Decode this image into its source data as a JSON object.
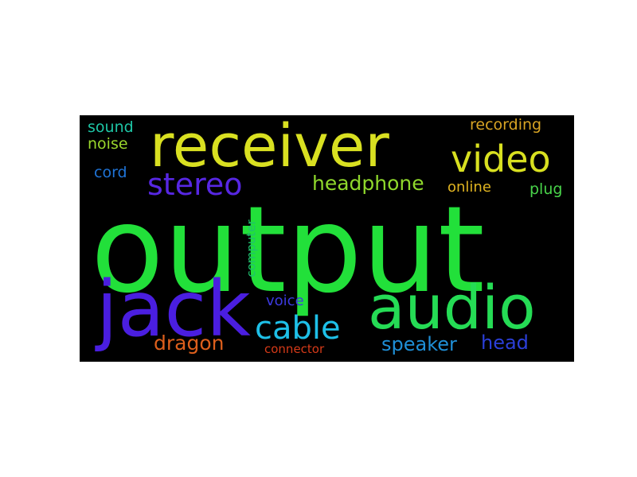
{
  "background_color": "#000000",
  "words": [
    {
      "id": "output",
      "text": "output",
      "color": "#22e03a"
    },
    {
      "id": "receiver",
      "text": "receiver",
      "color": "#d9e021"
    },
    {
      "id": "jack",
      "text": "jack",
      "color": "#4a1ee0"
    },
    {
      "id": "audio",
      "text": "audio",
      "color": "#25dc55"
    },
    {
      "id": "video",
      "text": "video",
      "color": "#d8e020"
    },
    {
      "id": "stereo",
      "text": "stereo",
      "color": "#5727e3"
    },
    {
      "id": "cable",
      "text": "cable",
      "color": "#1ec0e8"
    },
    {
      "id": "headphone",
      "text": "headphone",
      "color": "#8fd82c"
    },
    {
      "id": "speaker",
      "text": "speaker",
      "color": "#1f8fd6"
    },
    {
      "id": "dragon",
      "text": "dragon",
      "color": "#dd5f1c"
    },
    {
      "id": "head",
      "text": "head",
      "color": "#2b3fd9"
    },
    {
      "id": "voice",
      "text": "voice",
      "color": "#3c3adf"
    },
    {
      "id": "online",
      "text": "online",
      "color": "#e0b421"
    },
    {
      "id": "plug",
      "text": "plug",
      "color": "#49d44a"
    },
    {
      "id": "recording",
      "text": "recording",
      "color": "#d8a424"
    },
    {
      "id": "cord",
      "text": "cord",
      "color": "#1f73d6"
    },
    {
      "id": "sound",
      "text": "sound",
      "color": "#1ec6a6"
    },
    {
      "id": "noise",
      "text": "noise",
      "color": "#9bd82d"
    },
    {
      "id": "computer",
      "text": "computer",
      "color": "#1fc16e"
    },
    {
      "id": "connector",
      "text": "connector",
      "color": "#d63a18"
    }
  ]
}
